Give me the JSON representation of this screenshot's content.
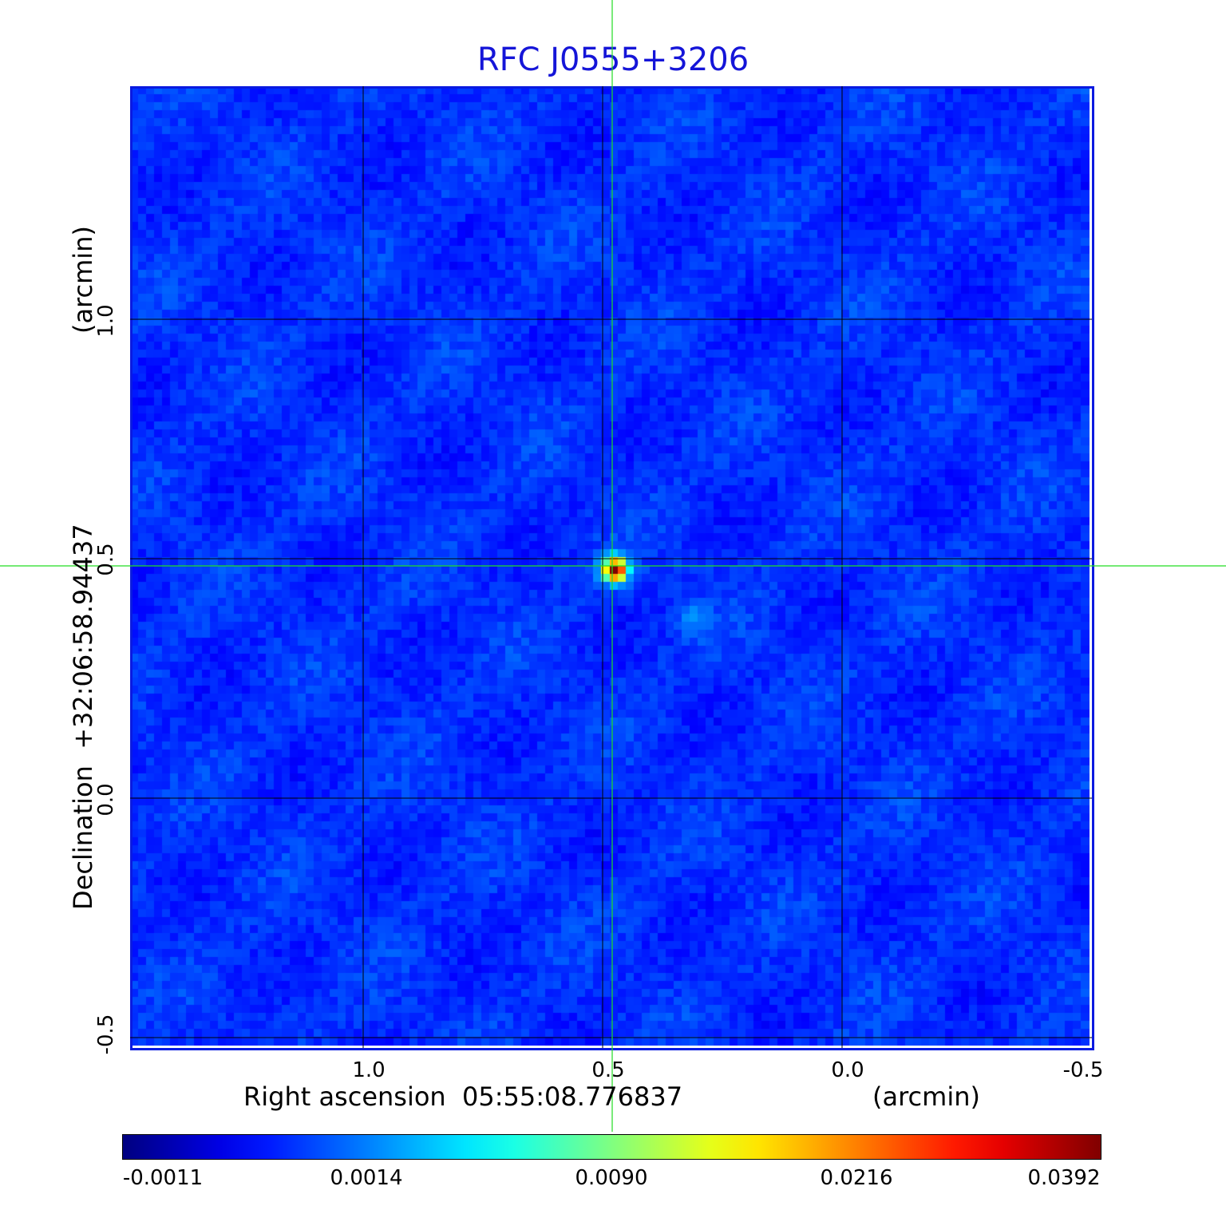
{
  "title": "RFC J0555+3206",
  "title_color": "#1515d8",
  "frame_color": "#0a1ae0",
  "crosshair_color": "#22dd22",
  "grid_color": "#000000",
  "x_axis": {
    "label": "Right ascension  05:55:08.776837",
    "unit": "(arcmin)",
    "ticks": [
      "1.0",
      "0.5",
      "0.0",
      "-0.5"
    ]
  },
  "y_axis": {
    "label": "Declination  +32:06:58.94437",
    "unit": "(arcmin)",
    "ticks": [
      "-0.5",
      "0.0",
      "0.5",
      "1.0"
    ]
  },
  "colorbar": {
    "colormap": "jet",
    "ticks": [
      "-0.0011",
      "0.0014",
      "0.0090",
      "0.0216",
      "0.0392"
    ]
  }
}
